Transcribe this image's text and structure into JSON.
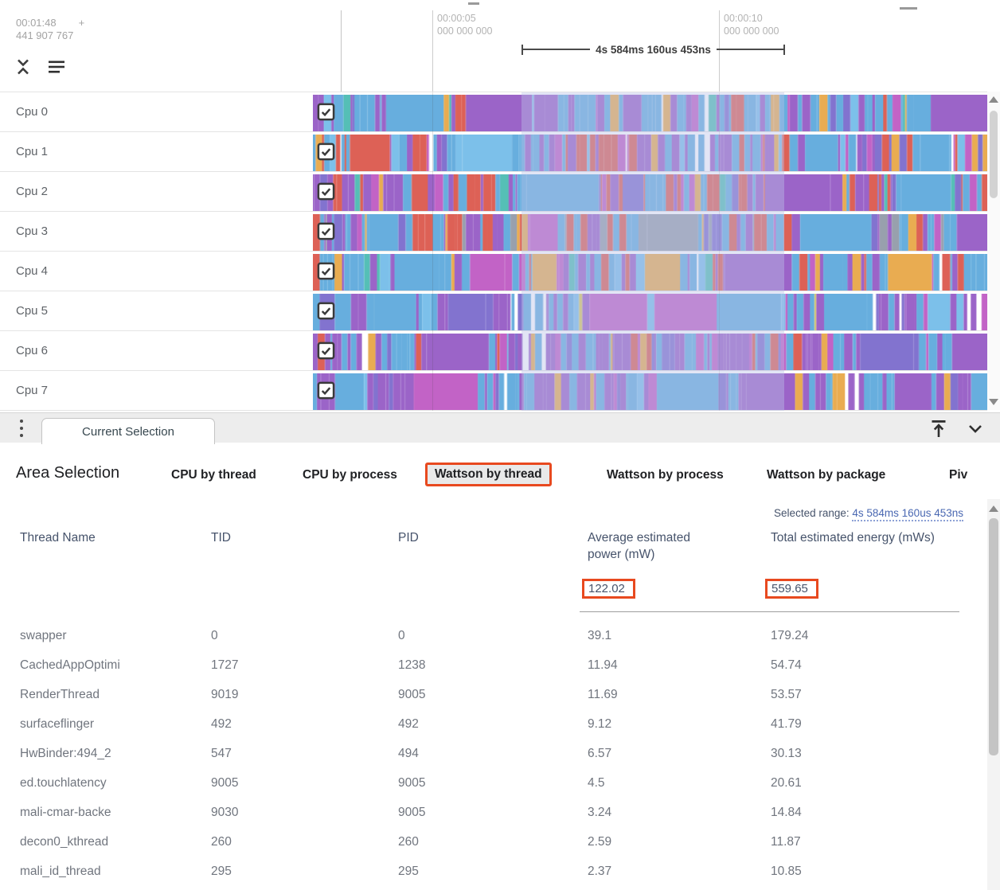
{
  "timeline": {
    "cursor_time": "00:01:48",
    "cursor_plus": "+",
    "cursor_time_ns": "441 907 767",
    "ticks": [
      {
        "label": "00:00:05",
        "sub": "000 000 000"
      },
      {
        "label": "00:00:10",
        "sub": "000 000 000"
      }
    ],
    "range_label": "4s 584ms 160us 453ns"
  },
  "tracks": {
    "palette": {
      "blue": "#67aede",
      "blue2": "#7cc0ea",
      "purple": "#9b64c8",
      "violet": "#8273cf",
      "magenta": "#c263c6",
      "red": "#dd6156",
      "orange": "#e9ac51",
      "teal": "#55bfb6",
      "yellow": "#d9c95c",
      "gray": "#98a0ad"
    },
    "rows": [
      {
        "label": "Cpu 0",
        "checked": true,
        "seed": 11,
        "gap": 0.01,
        "weights": {
          "blue": 38,
          "blue2": 10,
          "purple": 22,
          "magenta": 4,
          "orange": 10,
          "teal": 6,
          "red": 4,
          "violet": 6
        }
      },
      {
        "label": "Cpu 1",
        "checked": true,
        "seed": 22,
        "gap": 0.02,
        "weights": {
          "red": 22,
          "blue": 30,
          "blue2": 6,
          "purple": 26,
          "magenta": 5,
          "orange": 4,
          "violet": 7
        }
      },
      {
        "label": "Cpu 2",
        "checked": true,
        "seed": 33,
        "gap": 0.01,
        "weights": {
          "red": 26,
          "orange": 8,
          "blue": 26,
          "purple": 26,
          "teal": 4,
          "magenta": 6,
          "violet": 4
        }
      },
      {
        "label": "Cpu 3",
        "checked": true,
        "seed": 44,
        "gap": 0.01,
        "weights": {
          "red": 20,
          "blue": 30,
          "purple": 26,
          "orange": 6,
          "gray": 8,
          "magenta": 6,
          "violet": 4
        }
      },
      {
        "label": "Cpu 4",
        "checked": true,
        "seed": 55,
        "gap": 0.02,
        "weights": {
          "blue": 36,
          "blue2": 6,
          "purple": 28,
          "magenta": 6,
          "orange": 8,
          "red": 10,
          "teal": 4
        }
      },
      {
        "label": "Cpu 5",
        "checked": true,
        "seed": 66,
        "gap": 0.1,
        "weights": {
          "blue": 30,
          "purple": 36,
          "magenta": 8,
          "violet": 10,
          "yellow": 3,
          "blue2": 6
        }
      },
      {
        "label": "Cpu 6",
        "checked": true,
        "seed": 77,
        "gap": 0.02,
        "weights": {
          "purple": 40,
          "blue": 30,
          "violet": 8,
          "red": 9,
          "orange": 6,
          "magenta": 7
        }
      },
      {
        "label": "Cpu 7",
        "checked": true,
        "seed": 88,
        "gap": 0.06,
        "weights": {
          "purple": 44,
          "blue": 26,
          "violet": 8,
          "orange": 6,
          "magenta": 8,
          "blue2": 4
        }
      }
    ]
  },
  "bottom_bar": {
    "tab": "Current Selection"
  },
  "panel": {
    "title": "Area Selection",
    "accent_color": "#e8491f",
    "tabs": [
      "CPU by thread",
      "CPU by process",
      "Wattson by thread",
      "Wattson by process",
      "Wattson by package",
      "Piv"
    ],
    "active_tab": "Wattson by thread",
    "selected_range_label": "Selected range:",
    "selected_range_value": "4s 584ms 160us 453ns",
    "table": {
      "columns": [
        "Thread Name",
        "TID",
        "PID",
        "Average estimated power (mW)",
        "Total estimated energy (mWs)"
      ],
      "summary": {
        "avg_power": "122.02",
        "total_energy": "559.65"
      },
      "rows": [
        {
          "thread": "swapper",
          "tid": "0",
          "pid": "0",
          "power": "39.1",
          "energy": "179.24"
        },
        {
          "thread": "CachedAppOptimi",
          "tid": "1727",
          "pid": "1238",
          "power": "11.94",
          "energy": "54.74"
        },
        {
          "thread": "RenderThread",
          "tid": "9019",
          "pid": "9005",
          "power": "11.69",
          "energy": "53.57"
        },
        {
          "thread": "surfaceflinger",
          "tid": "492",
          "pid": "492",
          "power": "9.12",
          "energy": "41.79"
        },
        {
          "thread": "HwBinder:494_2",
          "tid": "547",
          "pid": "494",
          "power": "6.57",
          "energy": "30.13"
        },
        {
          "thread": "ed.touchlatency",
          "tid": "9005",
          "pid": "9005",
          "power": "4.5",
          "energy": "20.61"
        },
        {
          "thread": "mali-cmar-backe",
          "tid": "9030",
          "pid": "9005",
          "power": "3.24",
          "energy": "14.84"
        },
        {
          "thread": "decon0_kthread",
          "tid": "260",
          "pid": "260",
          "power": "2.59",
          "energy": "11.87"
        },
        {
          "thread": "mali_id_thread",
          "tid": "295",
          "pid": "295",
          "power": "2.37",
          "energy": "10.85"
        }
      ]
    }
  }
}
